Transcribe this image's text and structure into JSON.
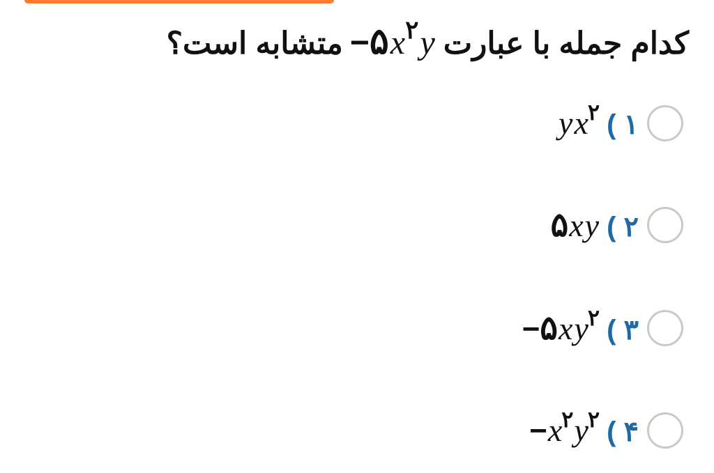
{
  "colors": {
    "top_bar": "#ff7a2f",
    "text": "#111111",
    "label": "#1f6aa5",
    "radio_border": "#c9c9c9",
    "background": "#ffffff"
  },
  "question": {
    "pre_text": "کدام جمله با عبارت",
    "post_text": "متشابه است؟",
    "expr": {
      "minus": "−",
      "coef": "۵",
      "v1": "x",
      "e1": "۲",
      "v2": "y"
    }
  },
  "options": [
    {
      "label": "۱ )",
      "expr": {
        "minus": "",
        "coef": "",
        "parts": [
          {
            "v": "y"
          },
          {
            "v": "x",
            "e": "۲"
          }
        ]
      }
    },
    {
      "label": "۲ )",
      "expr": {
        "minus": "",
        "coef": "۵",
        "parts": [
          {
            "v": "x"
          },
          {
            "v": "y"
          }
        ]
      }
    },
    {
      "label": "۳ )",
      "expr": {
        "minus": "−",
        "coef": "۵",
        "parts": [
          {
            "v": "x"
          },
          {
            "v": "y",
            "e": "۲"
          }
        ]
      }
    },
    {
      "label": "۴ )",
      "expr": {
        "minus": "−",
        "coef": "",
        "parts": [
          {
            "v": "x",
            "e": "۲"
          },
          {
            "v": "y",
            "e": "۲"
          }
        ]
      }
    }
  ]
}
